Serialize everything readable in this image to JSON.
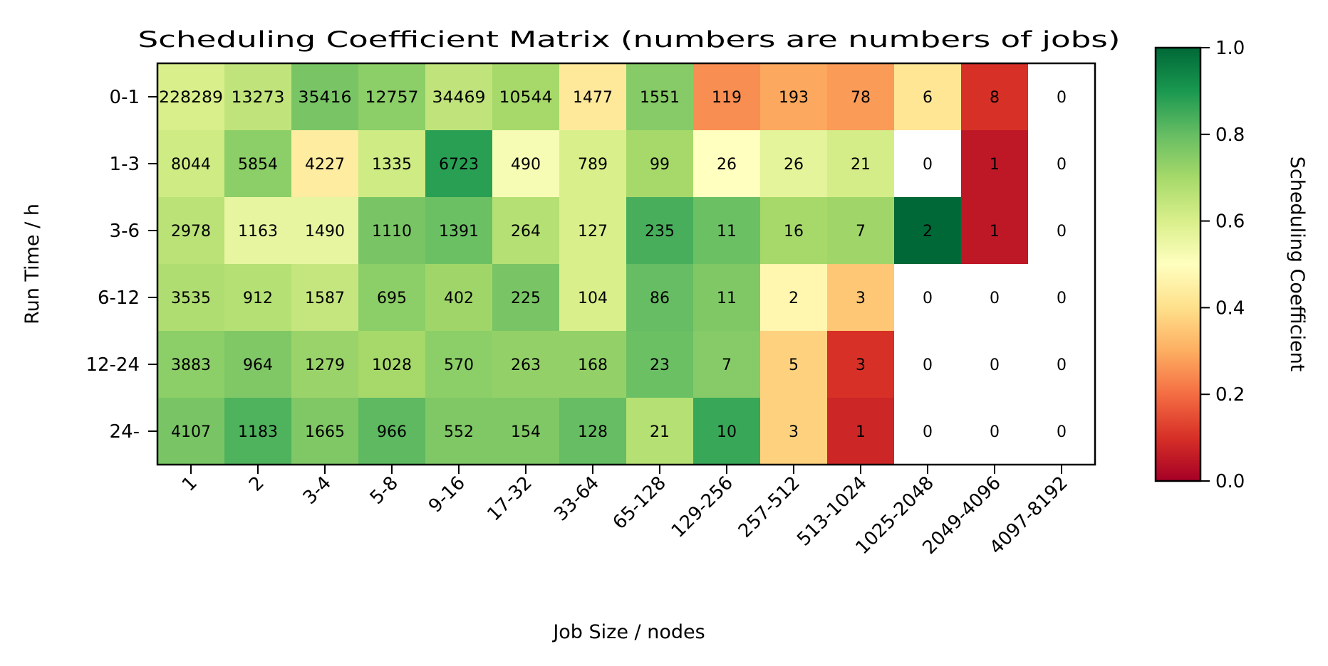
{
  "chart_data": {
    "type": "heatmap",
    "title": "Scheduling Coefficient Matrix (numbers are numbers of jobs)",
    "xlabel": "Job Size / nodes",
    "ylabel": "Run Time / h",
    "x_categories": [
      "1",
      "2",
      "3-4",
      "5-8",
      "9-16",
      "17-32",
      "33-64",
      "65-128",
      "129-256",
      "257-512",
      "513-1024",
      "1025-2048",
      "2049-4096",
      "4097-8192"
    ],
    "y_categories": [
      "0-1",
      "1-3",
      "3-6",
      "6-12",
      "12-24",
      "24-"
    ],
    "counts": [
      [
        228289,
        13273,
        35416,
        12757,
        34469,
        10544,
        1477,
        1551,
        119,
        193,
        78,
        6,
        8,
        0
      ],
      [
        8044,
        5854,
        4227,
        1335,
        6723,
        490,
        789,
        99,
        26,
        26,
        21,
        0,
        1,
        0
      ],
      [
        2978,
        1163,
        1490,
        1110,
        1391,
        264,
        127,
        235,
        11,
        16,
        7,
        2,
        1,
        0
      ],
      [
        3535,
        912,
        1587,
        695,
        402,
        225,
        104,
        86,
        11,
        2,
        3,
        0,
        0,
        0
      ],
      [
        3883,
        964,
        1279,
        1028,
        570,
        263,
        168,
        23,
        7,
        5,
        3,
        0,
        0,
        0
      ],
      [
        4107,
        1183,
        1665,
        966,
        552,
        154,
        128,
        21,
        10,
        3,
        1,
        0,
        0,
        0
      ]
    ],
    "coefficients": [
      [
        0.6,
        0.65,
        0.77,
        0.74,
        0.65,
        0.7,
        0.43,
        0.75,
        0.25,
        0.29,
        0.27,
        0.42,
        0.1,
        null
      ],
      [
        0.62,
        0.74,
        0.44,
        0.62,
        0.88,
        0.52,
        0.6,
        0.7,
        0.5,
        0.57,
        0.61,
        null,
        0.05,
        null
      ],
      [
        0.66,
        0.56,
        0.56,
        0.77,
        0.79,
        0.67,
        0.6,
        0.84,
        0.79,
        0.7,
        0.71,
        1.0,
        0.05,
        null
      ],
      [
        0.68,
        0.67,
        0.64,
        0.74,
        0.71,
        0.77,
        0.6,
        0.8,
        0.76,
        0.47,
        0.35,
        null,
        null,
        null
      ],
      [
        0.74,
        0.76,
        0.72,
        0.7,
        0.74,
        0.73,
        0.73,
        0.79,
        0.75,
        0.37,
        0.1,
        null,
        null,
        null
      ],
      [
        0.77,
        0.83,
        0.76,
        0.81,
        0.76,
        0.76,
        0.8,
        0.67,
        0.86,
        0.37,
        0.08,
        null,
        null,
        null
      ]
    ],
    "colorbar": {
      "label": "Scheduling Coefficient",
      "range": [
        0,
        1
      ],
      "ticks": [
        "0.0",
        "0.2",
        "0.4",
        "0.6",
        "0.8",
        "1.0"
      ],
      "colormap": "RdYlGn",
      "colormap_stops": [
        "#a50026",
        "#d73027",
        "#f46d43",
        "#fdae61",
        "#fee08b",
        "#ffffbf",
        "#d9ef8b",
        "#a6d96a",
        "#66bd63",
        "#1a9850",
        "#006837"
      ]
    },
    "missing_color": "#ffffff"
  }
}
